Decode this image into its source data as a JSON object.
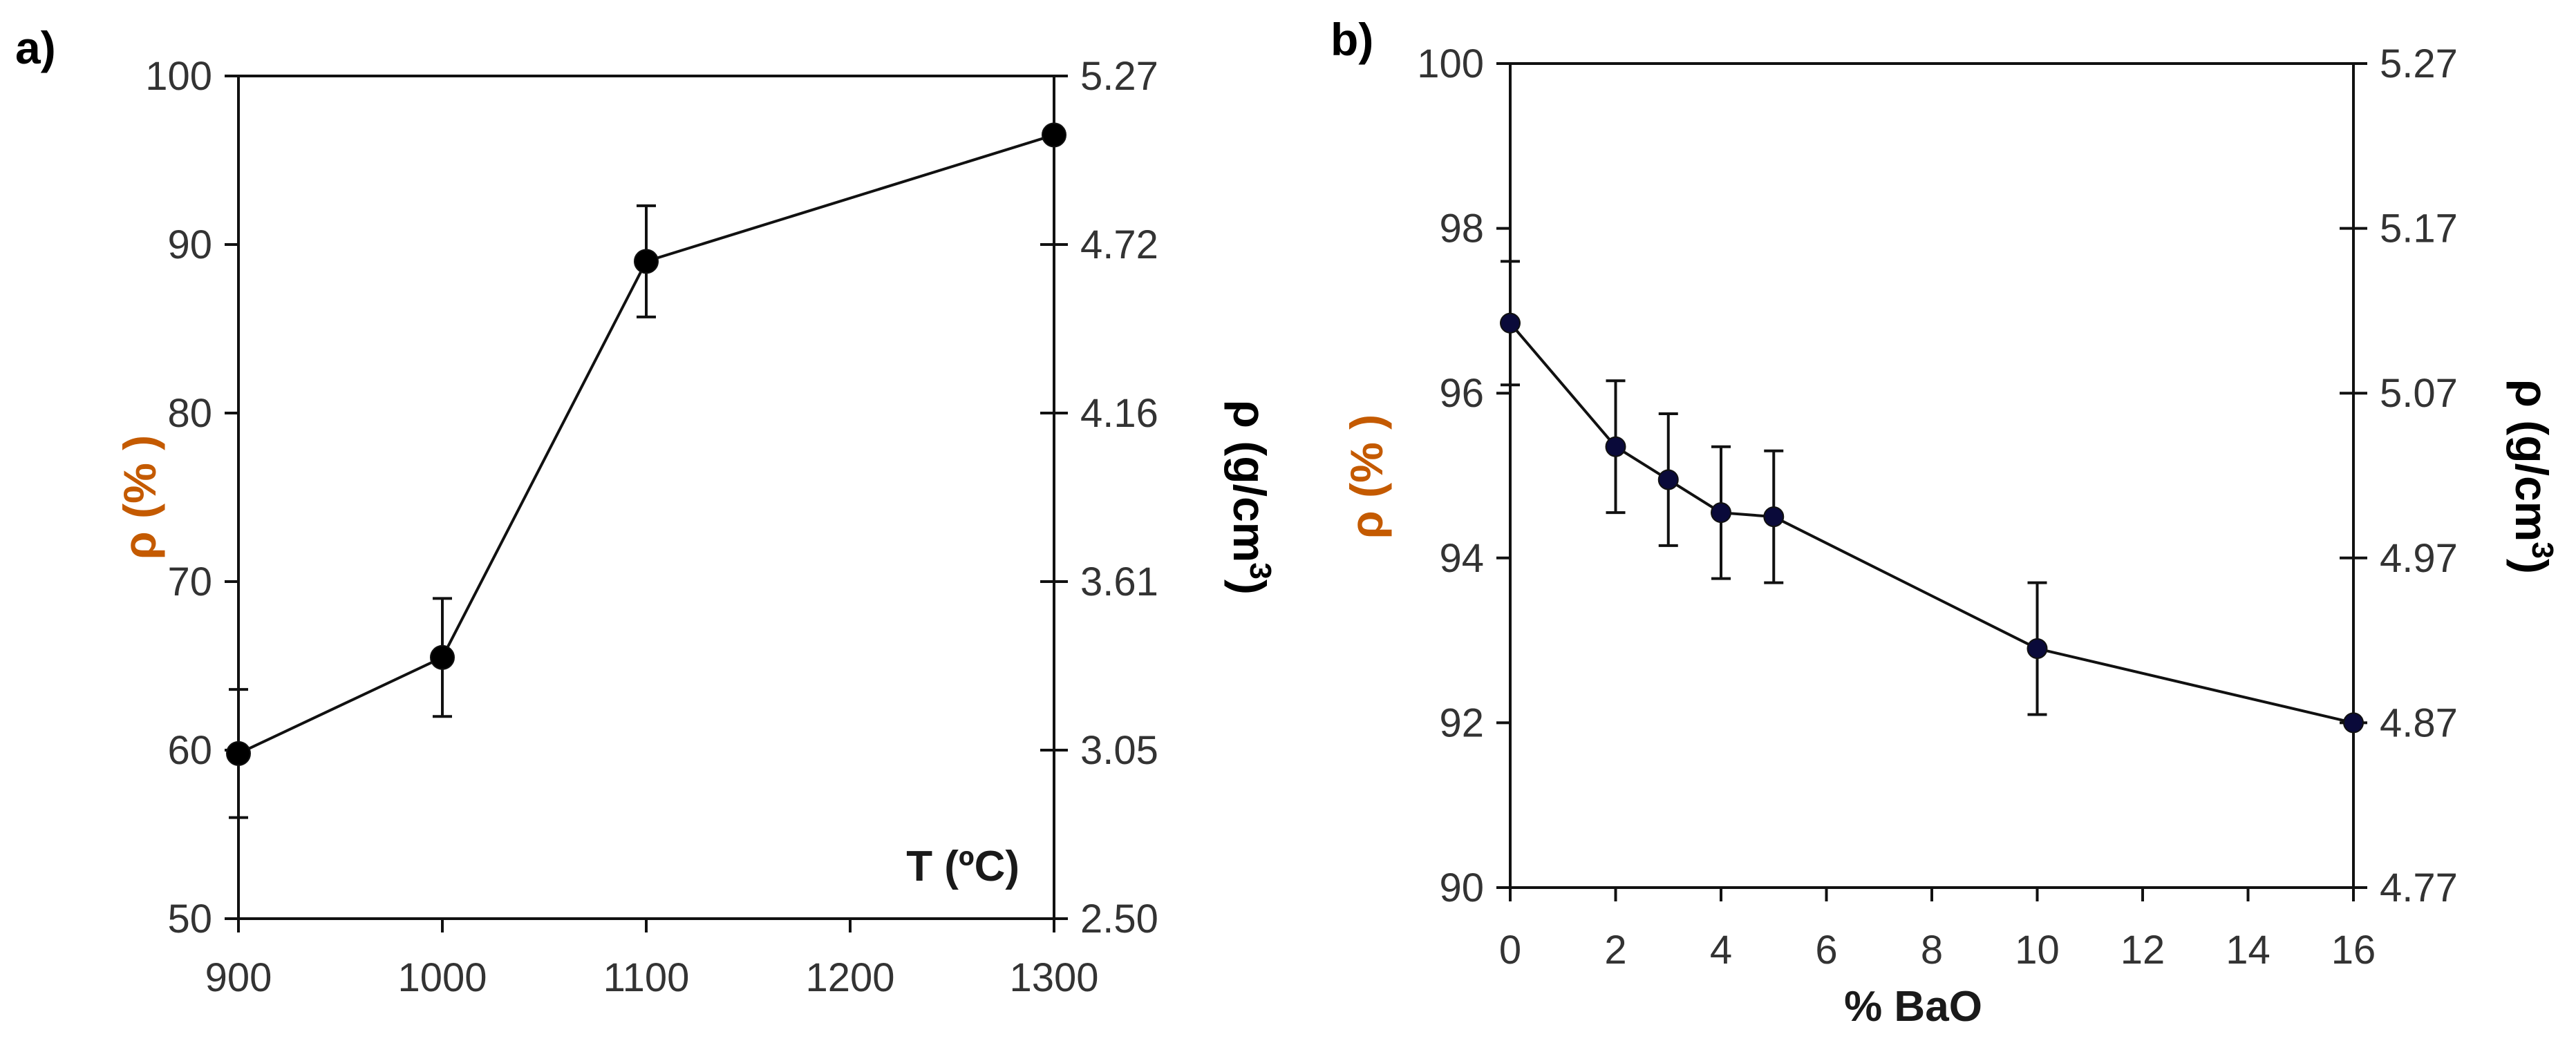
{
  "colors": {
    "axis": "#111111",
    "line": "#111111",
    "marker_a": "#000000",
    "marker_b": "#0a0a3a",
    "left_label": "#c45a00",
    "right_label": "#000000"
  },
  "chart_data": [
    {
      "type": "line",
      "panel_label": "a)",
      "x": [
        900,
        1000,
        1100,
        1300
      ],
      "y": [
        59.8,
        65.5,
        89.0,
        96.5
      ],
      "y_err": [
        3.8,
        3.5,
        3.3,
        0
      ],
      "xticks": [
        "900",
        "1000",
        "1100",
        "1200",
        "1300"
      ],
      "xlim": [
        900,
        1300
      ],
      "ylim": [
        50,
        100
      ],
      "yticks": [
        "50",
        "60",
        "70",
        "80",
        "90",
        "100"
      ],
      "ylabel": "ρ (% )",
      "y2_ticks": [
        "2.50",
        "3.05",
        "3.61",
        "4.16",
        "4.72",
        "5.27"
      ],
      "y2label": "ρ (g/cm",
      "y2label_sup": "3",
      "y2label_close": ")",
      "xlabel": "T (ºC)"
    },
    {
      "type": "line",
      "panel_label": "b)",
      "x": [
        0,
        2,
        3,
        4,
        5,
        10,
        16
      ],
      "y": [
        96.85,
        95.35,
        94.95,
        94.55,
        94.5,
        92.9,
        92.0
      ],
      "y_err": [
        0.75,
        0.8,
        0.8,
        0.8,
        0.8,
        0.8,
        0
      ],
      "xticks": [
        "0",
        "2",
        "4",
        "6",
        "8",
        "10",
        "12",
        "14",
        "16"
      ],
      "xlim": [
        0,
        16
      ],
      "ylim": [
        90,
        100
      ],
      "yticks": [
        "90",
        "92",
        "94",
        "96",
        "98",
        "100"
      ],
      "ylabel": "ρ (% )",
      "y2_ticks": [
        "4.77",
        "4.87",
        "4.97",
        "5.07",
        "5.17",
        "5.27"
      ],
      "y2label": "ρ (g/cm",
      "y2label_sup": "3",
      "y2label_close": ")",
      "xlabel": "% BaO"
    }
  ]
}
